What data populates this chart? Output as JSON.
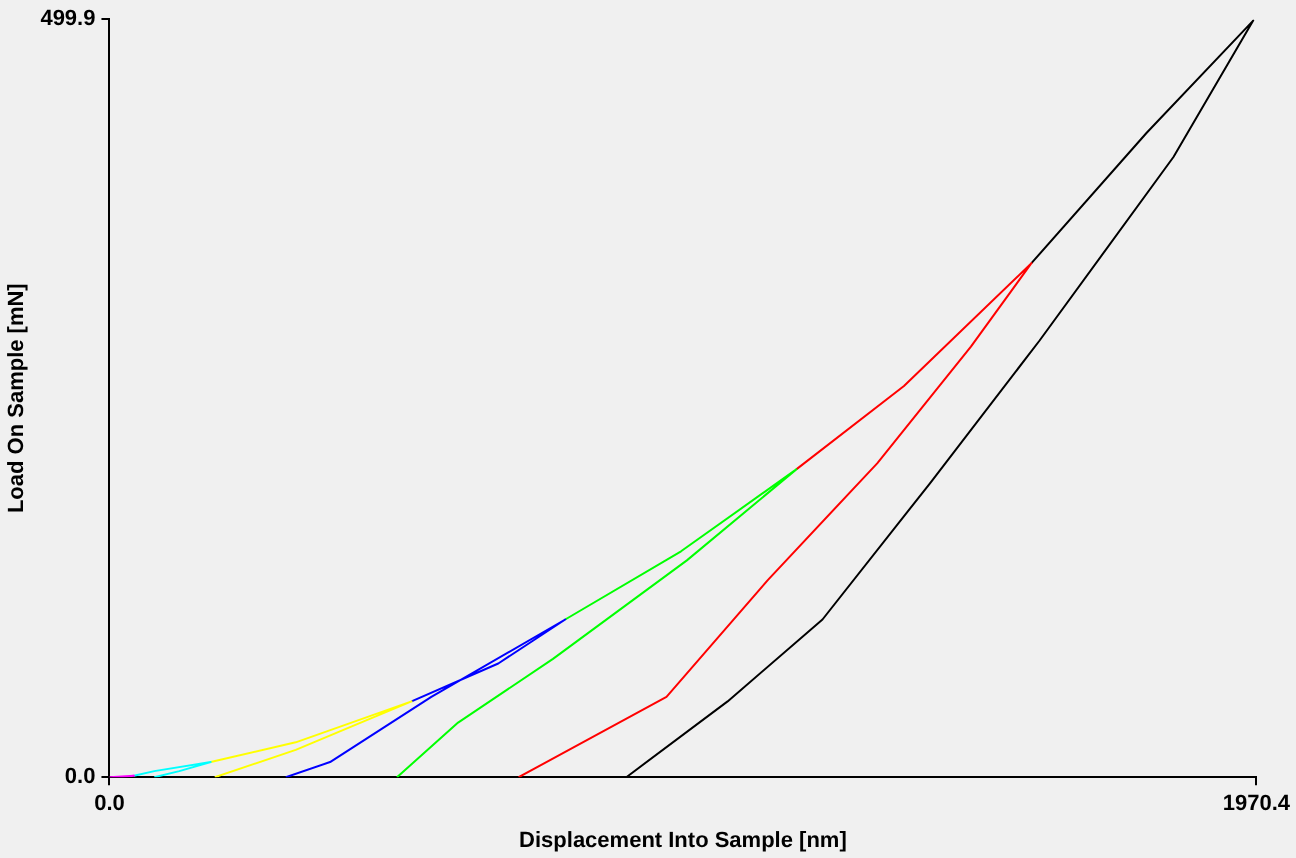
{
  "chart_data": {
    "type": "line",
    "xlabel": "Displacement Into Sample [nm]",
    "ylabel": "Load On Sample [mN]",
    "xlim": [
      0,
      1970.4
    ],
    "ylim": [
      0,
      499.9
    ],
    "xticks": [
      {
        "value": 0,
        "label": "0.0"
      },
      1970.4
    ],
    "yticks": [
      {
        "value": 0,
        "label": "0.0"
      },
      499.9
    ],
    "grid": false,
    "legend": false,
    "marker": "none",
    "line_style": "solid",
    "series": [
      {
        "color": "#000000",
        "x": [
          1584,
          1782,
          1965,
          1828,
          1598,
          1410,
          1225,
          1062,
          888
        ],
        "values": [
          339,
          425,
          499,
          409,
          288,
          194,
          104,
          50,
          0
        ]
      },
      {
        "color": "#ff0000",
        "x": [
          1180,
          1365,
          1584,
          1480,
          1319,
          1131,
          957,
          703
        ],
        "values": [
          203,
          258,
          339,
          284,
          207,
          130,
          53,
          0
        ]
      },
      {
        "color": "#00ff00",
        "x": [
          783,
          982,
          1180,
          992,
          762,
          599,
          494
        ],
        "values": [
          104,
          149,
          203,
          143,
          78,
          36,
          0
        ]
      },
      {
        "color": "#0000ff",
        "x": [
          519,
          668,
          783,
          553,
          379,
          303
        ],
        "values": [
          50,
          75,
          104,
          53,
          10,
          0
        ]
      },
      {
        "color": "#ffff00",
        "x": [
          174,
          320,
          519,
          320,
          181
        ],
        "values": [
          10,
          23,
          50,
          18,
          0
        ]
      },
      {
        "color": "#00ffff",
        "x": [
          42,
          77,
          174,
          120,
          77
        ],
        "values": [
          1,
          4,
          10,
          4,
          0
        ]
      },
      {
        "color": "#ff00ff",
        "x": [
          0,
          42,
          20
        ],
        "values": [
          0,
          1,
          0
        ]
      }
    ]
  }
}
